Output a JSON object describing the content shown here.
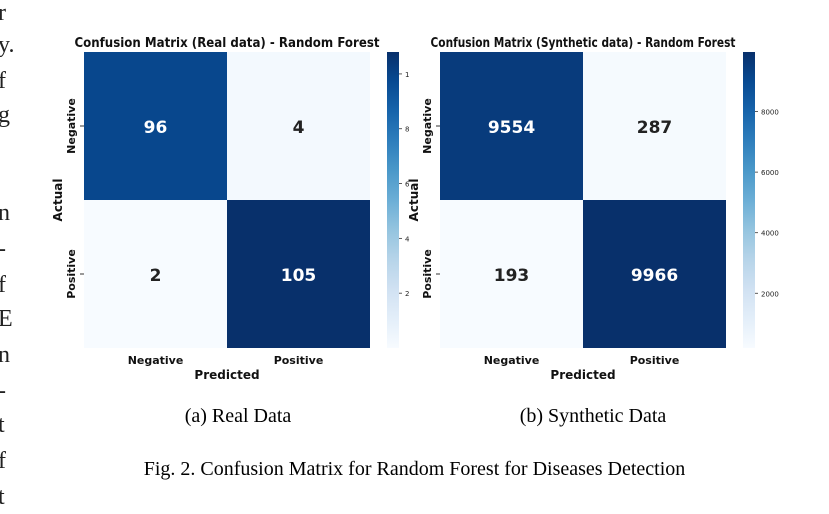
{
  "edge_text": [
    "r",
    "y.",
    "f",
    "g",
    "n",
    "-",
    "f",
    "E",
    "n",
    "-",
    "t",
    "f",
    "t"
  ],
  "chart_data": [
    {
      "type": "heatmap",
      "title": "Confusion Matrix (Real data) - Random Forest",
      "xlabel": "Predicted",
      "ylabel": "Actual",
      "x_categories": [
        "Negative",
        "Positive"
      ],
      "y_categories": [
        "Negative",
        "Positive"
      ],
      "values": [
        [
          96,
          4
        ],
        [
          2,
          105
        ]
      ],
      "colorbar": {
        "min": 0,
        "max": 1.08,
        "ticks": [
          "1",
          "8",
          "6",
          "4",
          "2"
        ],
        "tick_values": [
          1,
          0.8,
          0.6,
          0.4,
          0.2
        ]
      },
      "colormap": "Blues"
    },
    {
      "type": "heatmap",
      "title": "Confusion Matrix (Synthetic data) - Random Forest",
      "xlabel": "Predicted",
      "ylabel": "Actual",
      "x_categories": [
        "Negative",
        "Positive"
      ],
      "y_categories": [
        "Negative",
        "Positive"
      ],
      "values": [
        [
          9554,
          287
        ],
        [
          193,
          9966
        ]
      ],
      "colorbar": {
        "min": 193,
        "max": 9966,
        "ticks": [
          "8000",
          "6000",
          "4000",
          "2000"
        ],
        "tick_values": [
          8000,
          6000,
          4000,
          2000
        ]
      },
      "colormap": "Blues"
    }
  ],
  "sublabels": [
    "(a)  Real Data",
    "(b)  Synthetic Data"
  ],
  "caption": "Fig. 2.   Confusion Matrix for Random Forest for Diseases Detection"
}
